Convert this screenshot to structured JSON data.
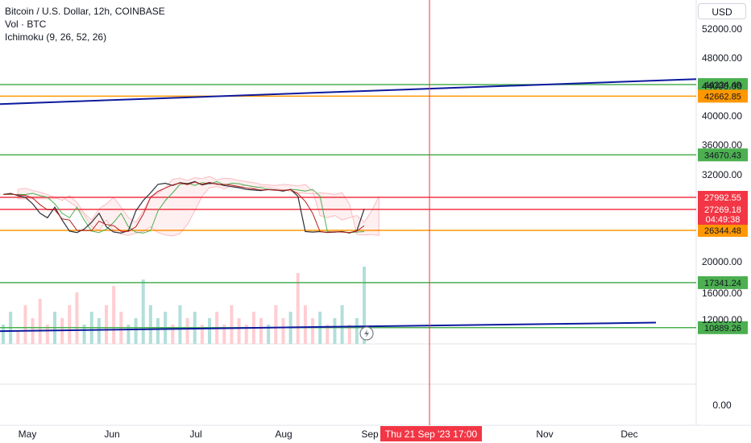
{
  "legend": {
    "title": "Bitcoin / U.S. Dollar, 12h, COINBASE",
    "volume": "Vol · BTC",
    "indicator": "Ichimoku (9, 26, 52, 26)"
  },
  "currency_button": "USD",
  "crosshair_time_label": "Thu 21 Sep '23   17:00",
  "colors": {
    "green_line": "#4caf50",
    "orange_line": "#ff9800",
    "red_line": "#f23645",
    "trend_line": "#0d1a9e",
    "crosshair": "#f23645",
    "vol_up": "#b2dfdb",
    "vol_down": "#ffcdd2"
  },
  "chart_data": {
    "type": "line",
    "title": "Bitcoin / U.S. Dollar, 12h, COINBASE",
    "y_axis_ticks": [
      "52000.00",
      "48000.00",
      "44000.00",
      "40000.00",
      "36000.00",
      "32000.00",
      "20000.00",
      "16000.00",
      "12000.00",
      "0.00"
    ],
    "x_axis_ticks": [
      "May",
      "Jun",
      "Jul",
      "Aug",
      "Sep",
      "Nov",
      "Dec"
    ],
    "horizontal_levels": [
      {
        "value": 44224.49,
        "label": "44224.49",
        "color": "green"
      },
      {
        "value": 42662.85,
        "label": "42662.85",
        "color": "orange"
      },
      {
        "value": 34670.43,
        "label": "34670.43",
        "color": "green"
      },
      {
        "value": 27992.55,
        "label": "27992.55",
        "color": "red"
      },
      {
        "value": 27269.18,
        "label": "27269.18",
        "color": "red"
      },
      {
        "value": 26344.48,
        "label": "26344.48",
        "color": "orange"
      },
      {
        "value": 17341.24,
        "label": "17341.24",
        "color": "green"
      },
      {
        "value": 10889.26,
        "label": "10889.26",
        "color": "green"
      }
    ],
    "countdown_label": "04:49:38",
    "trend_lines": [
      {
        "name": "upper",
        "from": 41600,
        "to": 45000
      },
      {
        "name": "lower",
        "from": 10400,
        "to": 11600
      }
    ],
    "price_series": [
      28500,
      28700,
      28300,
      28000,
      27600,
      27100,
      26900,
      27400,
      26800,
      26200,
      25900,
      26400,
      26700,
      27100,
      26500,
      26000,
      25800,
      26300,
      27200,
      27800,
      28800,
      30300,
      30500,
      30100,
      30600,
      30400,
      30800,
      30200,
      30500,
      30400,
      30100,
      29900,
      29700,
      29400,
      29300,
      29200,
      29400,
      29300,
      29100,
      29400,
      28200,
      26100,
      26000,
      26100,
      25900,
      26000,
      26100,
      25800,
      26300,
      27300
    ],
    "volume_series": [
      3,
      5,
      2,
      6,
      4,
      7,
      3,
      5,
      4,
      6,
      8,
      3,
      5,
      4,
      6,
      9,
      5,
      3,
      4,
      10,
      6,
      4,
      5,
      3,
      6,
      4,
      5,
      3,
      4,
      5,
      3,
      6,
      4,
      3,
      5,
      4,
      3,
      6,
      4,
      5,
      11,
      6,
      4,
      5,
      3,
      4,
      6,
      3,
      4,
      12
    ]
  }
}
